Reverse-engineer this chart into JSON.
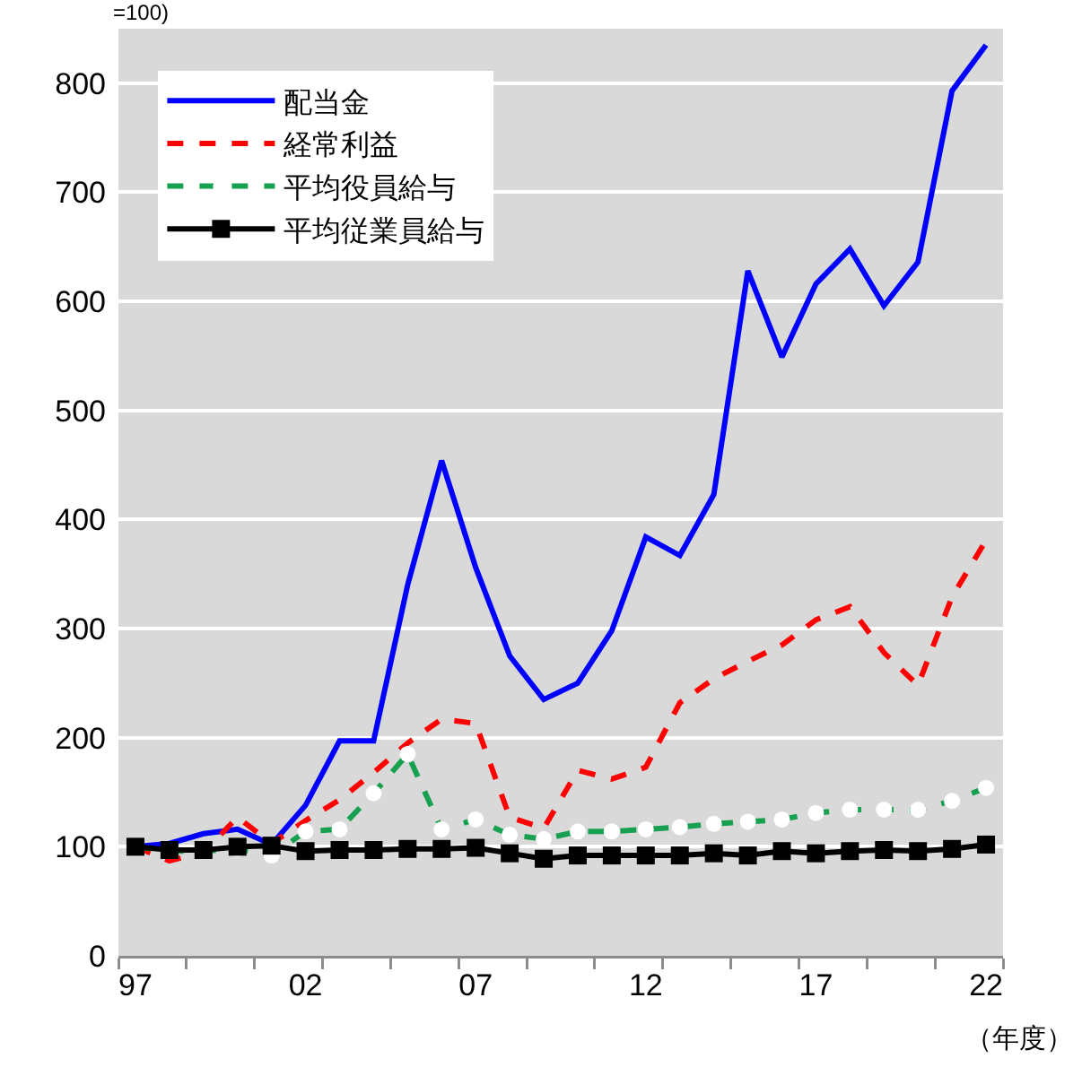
{
  "chart_data": {
    "type": "line",
    "ylabel": "=100)",
    "xlabel": "（年度）",
    "x": [
      1997,
      1998,
      1999,
      2000,
      2001,
      2002,
      2003,
      2004,
      2005,
      2006,
      2007,
      2008,
      2009,
      2010,
      2011,
      2012,
      2013,
      2014,
      2015,
      2016,
      2017,
      2018,
      2019,
      2020,
      2021,
      2022
    ],
    "xlim": [
      1996.5,
      2022.5
    ],
    "xticks": [
      {
        "value": 1997,
        "label": "97"
      },
      {
        "value": 2002,
        "label": "02"
      },
      {
        "value": 2007,
        "label": "07"
      },
      {
        "value": 2012,
        "label": "12"
      },
      {
        "value": 2017,
        "label": "17"
      },
      {
        "value": 2022,
        "label": "22"
      },
      {
        "value": 1996.5,
        "label": null
      },
      {
        "value": 1998.5,
        "label": null
      },
      {
        "value": 2000.5,
        "label": null
      },
      {
        "value": 2002.5,
        "label": null
      },
      {
        "value": 2004.5,
        "label": null
      },
      {
        "value": 2006.5,
        "label": null
      },
      {
        "value": 2008.5,
        "label": null
      },
      {
        "value": 2010.5,
        "label": null
      },
      {
        "value": 2012.5,
        "label": null
      },
      {
        "value": 2014.5,
        "label": null
      },
      {
        "value": 2016.5,
        "label": null
      },
      {
        "value": 2018.5,
        "label": null
      },
      {
        "value": 2020.5,
        "label": null
      },
      {
        "value": 2022.5,
        "label": null
      }
    ],
    "ylim": [
      0,
      850
    ],
    "yticks": [
      0,
      100,
      200,
      300,
      400,
      500,
      600,
      700,
      800
    ],
    "grid": "y",
    "legend": "top left",
    "series": [
      {
        "name": "配当金",
        "color": "#0000ff",
        "line_style": "solid",
        "values": [
          100,
          103,
          112,
          116,
          102,
          138,
          197,
          197,
          340,
          454,
          356,
          275,
          235,
          250,
          298,
          384,
          367,
          423,
          628,
          549,
          616,
          648,
          596,
          636,
          793,
          835
        ]
      },
      {
        "name": "経常利益",
        "color": "#ff0000",
        "line_style": "dashed",
        "values": [
          100,
          87,
          95,
          127,
          103,
          124,
          143,
          168,
          195,
          217,
          213,
          127,
          117,
          170,
          162,
          173,
          232,
          254,
          270,
          285,
          308,
          320,
          278,
          248,
          329,
          381
        ]
      },
      {
        "name": "平均役員給与",
        "color": "#17a050",
        "line_style": "dashed",
        "marker": "circle",
        "values": [
          100,
          96,
          96,
          98,
          92,
          114,
          116,
          149,
          185,
          116,
          125,
          111,
          107,
          114,
          114,
          116,
          118,
          121,
          123,
          125,
          131,
          134,
          134,
          134,
          142,
          154
        ]
      },
      {
        "name": "平均従業員給与",
        "color": "#000000",
        "line_style": "solid",
        "marker": "square",
        "values": [
          100,
          97,
          97,
          100,
          101,
          96,
          97,
          97,
          98,
          98,
          99,
          94,
          89,
          92,
          92,
          92,
          92,
          94,
          92,
          96,
          94,
          96,
          97,
          96,
          98,
          102
        ]
      }
    ]
  }
}
